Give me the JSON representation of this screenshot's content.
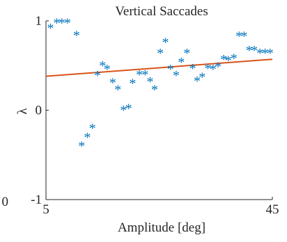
{
  "chart_data": {
    "type": "scatter",
    "title": "Vertical Saccades",
    "xlabel": "Amplitude [deg]",
    "ylabel": "λ",
    "xlim": [
      5,
      45
    ],
    "ylim": [
      -1,
      1
    ],
    "x_ticks": [
      {
        "value": 5,
        "label": "5"
      },
      {
        "value": 45,
        "label": "45"
      }
    ],
    "y_ticks": [
      {
        "value": 1,
        "label": "1"
      },
      {
        "value": 0,
        "label": "0"
      },
      {
        "value": -1,
        "label": "-1"
      }
    ],
    "stray_tick_label": "0",
    "grid": false,
    "legend": "none",
    "marker": "*",
    "series": [
      {
        "x": [
          5.8,
          6.9,
          7.8,
          8.8,
          10.4,
          11.3,
          12.3,
          13.2,
          14.1,
          15.0,
          15.8,
          16.8,
          17.7,
          18.7,
          19.6,
          20.3,
          21.5,
          22.5,
          23.4,
          24.2,
          25.2,
          26.1,
          27.0,
          28.0,
          28.9,
          29.9,
          30.9,
          31.7,
          32.6,
          33.6,
          34.5,
          35.4,
          36.4,
          37.2,
          38.2,
          39.1,
          40.0,
          40.9,
          41.8,
          42.8,
          43.7,
          44.6
        ],
        "y": [
          0.93,
          0.99,
          0.99,
          0.99,
          0.85,
          -0.39,
          -0.29,
          -0.19,
          0.4,
          0.51,
          0.47,
          0.32,
          0.24,
          0.01,
          0.03,
          0.31,
          0.41,
          0.41,
          0.33,
          0.24,
          0.65,
          0.77,
          0.47,
          0.4,
          0.55,
          0.65,
          0.48,
          0.34,
          0.38,
          0.48,
          0.47,
          0.5,
          0.58,
          0.57,
          0.59,
          0.84,
          0.84,
          0.68,
          0.68,
          0.65,
          0.65,
          0.65
        ]
      },
      {
        "type": "line",
        "x": [
          5,
          45
        ],
        "y": [
          0.38,
          0.57
        ]
      }
    ],
    "colors": {
      "points": "#0072BD",
      "fit_line": "#D95319",
      "axis": "#262626",
      "text": "#262626"
    }
  }
}
